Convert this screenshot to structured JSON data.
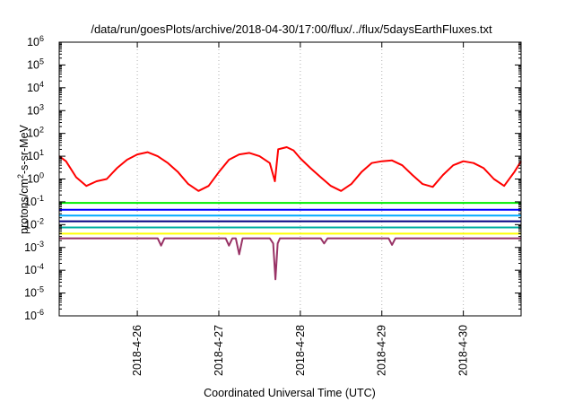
{
  "chart_data": {
    "type": "line",
    "title": "/data/run/goesPlots/archive/2018-04-30/17:00/flux/../flux/5daysEarthFluxes.txt",
    "xlabel": "Coordinated Universal Time (UTC)",
    "ylabel": {
      "prefix": "protons/cm",
      "sup": "2",
      "suffix": "-s-sr-MeV"
    },
    "y_scale": "log",
    "ylim": [
      1e-06,
      1000000.0
    ],
    "y_ticks": [
      {
        "base": "10",
        "exp": "-6",
        "value": 1e-06
      },
      {
        "base": "10",
        "exp": "-5",
        "value": 1e-05
      },
      {
        "base": "10",
        "exp": "-4",
        "value": 0.0001
      },
      {
        "base": "10",
        "exp": "-3",
        "value": 0.001
      },
      {
        "base": "10",
        "exp": "-2",
        "value": 0.01
      },
      {
        "base": "10",
        "exp": "-1",
        "value": 0.1
      },
      {
        "base": "10",
        "exp": "0",
        "value": 1
      },
      {
        "base": "10",
        "exp": "1",
        "value": 10
      },
      {
        "base": "10",
        "exp": "2",
        "value": 100
      },
      {
        "base": "10",
        "exp": "3",
        "value": 1000
      },
      {
        "base": "10",
        "exp": "4",
        "value": 10000
      },
      {
        "base": "10",
        "exp": "5",
        "value": 100000
      },
      {
        "base": "10",
        "exp": "6",
        "value": 1000000
      }
    ],
    "x_range": [
      "2018-04-25T01:00",
      "2018-04-30T17:00"
    ],
    "x_ticks": [
      "2018-4-26",
      "2018-4-27",
      "2018-4-28",
      "2018-4-29",
      "2018-4-30"
    ],
    "x_tick_dates": [
      "2018-04-26T00:00",
      "2018-04-27T00:00",
      "2018-04-28T00:00",
      "2018-04-29T00:00",
      "2018-04-30T00:00"
    ],
    "grid": "vertical dashed at date ticks",
    "series": [
      {
        "color": "#ff0000",
        "x": [
          "2018-04-25T01:00",
          "2018-04-25T03:00",
          "2018-04-25T06:00",
          "2018-04-25T09:00",
          "2018-04-25T12:00",
          "2018-04-25T15:00",
          "2018-04-25T18:00",
          "2018-04-25T21:00",
          "2018-04-26T00:00",
          "2018-04-26T03:00",
          "2018-04-26T06:00",
          "2018-04-26T09:00",
          "2018-04-26T12:00",
          "2018-04-26T15:00",
          "2018-04-26T18:00",
          "2018-04-26T21:00",
          "2018-04-27T00:00",
          "2018-04-27T03:00",
          "2018-04-27T06:00",
          "2018-04-27T09:00",
          "2018-04-27T12:00",
          "2018-04-27T15:00",
          "2018-04-27T16:30",
          "2018-04-27T17:30",
          "2018-04-27T20:00",
          "2018-04-27T22:00",
          "2018-04-28T00:00",
          "2018-04-28T03:00",
          "2018-04-28T06:00",
          "2018-04-28T09:00",
          "2018-04-28T12:00",
          "2018-04-28T15:00",
          "2018-04-28T18:00",
          "2018-04-28T21:00",
          "2018-04-29T00:00",
          "2018-04-29T03:00",
          "2018-04-29T06:00",
          "2018-04-29T09:00",
          "2018-04-29T12:00",
          "2018-04-29T15:00",
          "2018-04-29T18:00",
          "2018-04-29T21:00",
          "2018-04-30T00:00",
          "2018-04-30T03:00",
          "2018-04-30T06:00",
          "2018-04-30T09:00",
          "2018-04-30T12:00",
          "2018-04-30T15:00",
          "2018-04-30T17:00"
        ],
        "y": [
          10,
          6,
          1.2,
          0.5,
          0.8,
          1,
          3,
          7,
          12,
          15,
          10,
          5,
          2,
          0.6,
          0.3,
          0.5,
          2,
          7,
          12,
          14,
          10,
          5,
          0.8,
          20,
          25,
          18,
          8,
          3,
          1.2,
          0.5,
          0.3,
          0.6,
          2,
          5,
          6,
          6.5,
          4,
          1.5,
          0.6,
          0.45,
          1.5,
          4,
          6,
          5,
          3,
          1,
          0.5,
          2,
          6
        ]
      },
      {
        "color": "#00ee00",
        "x": [
          "2018-04-25T01:00",
          "2018-04-30T17:00"
        ],
        "y": [
          0.09,
          0.09
        ]
      },
      {
        "color": "#0000ff",
        "x": [
          "2018-04-25T01:00",
          "2018-04-30T17:00"
        ],
        "y": [
          0.045,
          0.045
        ]
      },
      {
        "color": "#00aaff",
        "x": [
          "2018-04-25T01:00",
          "2018-04-30T17:00"
        ],
        "y": [
          0.025,
          0.025
        ]
      },
      {
        "color": "#000080",
        "x": [
          "2018-04-25T01:00",
          "2018-04-30T17:00"
        ],
        "y": [
          0.014,
          0.014
        ]
      },
      {
        "color": "#00b0a0",
        "x": [
          "2018-04-25T01:00",
          "2018-04-30T17:00"
        ],
        "y": [
          0.0075,
          0.0075
        ]
      },
      {
        "color": "#ffff00",
        "x": [
          "2018-04-25T01:00",
          "2018-04-30T17:00"
        ],
        "y": [
          0.004,
          0.004
        ]
      },
      {
        "color": "#993366",
        "x": [
          "2018-04-25T01:00",
          "2018-04-26T06:00",
          "2018-04-26T07:00",
          "2018-04-26T08:00",
          "2018-04-27T02:00",
          "2018-04-27T03:00",
          "2018-04-27T04:00",
          "2018-04-27T05:00",
          "2018-04-27T06:00",
          "2018-04-27T07:00",
          "2018-04-27T08:00",
          "2018-04-27T15:00",
          "2018-04-27T16:00",
          "2018-04-27T16:40",
          "2018-04-27T17:20",
          "2018-04-27T18:00",
          "2018-04-28T06:00",
          "2018-04-28T07:00",
          "2018-04-28T08:00",
          "2018-04-29T02:00",
          "2018-04-29T03:00",
          "2018-04-29T04:00",
          "2018-04-30T17:00"
        ],
        "y": [
          0.0025,
          0.0025,
          0.0012,
          0.0025,
          0.0025,
          0.0012,
          0.0025,
          0.0025,
          0.0005,
          0.0025,
          0.0025,
          0.0025,
          0.0015,
          4e-05,
          0.0015,
          0.0025,
          0.0025,
          0.0015,
          0.0025,
          0.0025,
          0.0013,
          0.0025,
          0.0025
        ]
      }
    ]
  }
}
